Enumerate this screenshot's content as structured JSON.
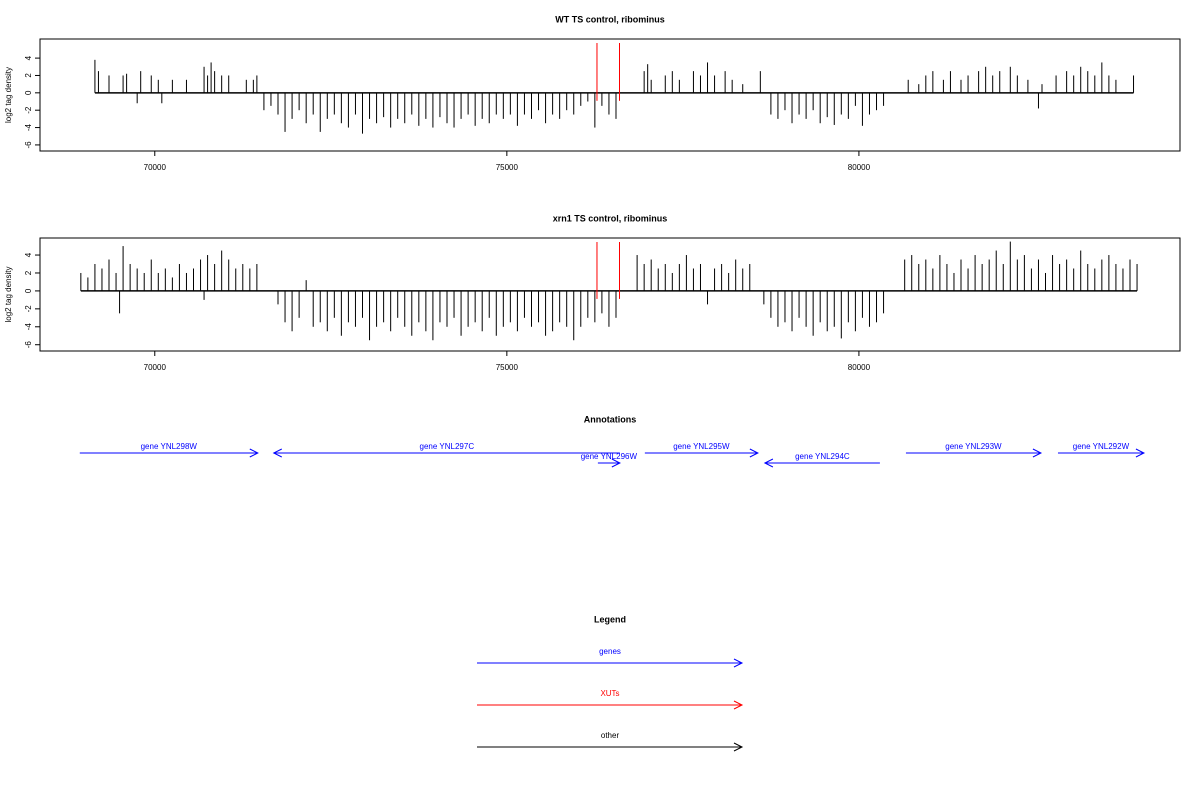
{
  "chart_data": [
    {
      "type": "bar",
      "title": "WT TS control, ribominus",
      "ylabel": "log2 tag density",
      "color": "#000000",
      "x": [
        69150,
        69200,
        69350,
        69550,
        69600,
        69750,
        69800,
        69950,
        70050,
        70100,
        70250,
        70450,
        70700,
        70750,
        70800,
        70850,
        70950,
        71050,
        71300,
        71400,
        71450,
        71550,
        71650,
        71750,
        71850,
        71950,
        72050,
        72150,
        72250,
        72350,
        72450,
        72550,
        72650,
        72750,
        72850,
        72950,
        73050,
        73150,
        73250,
        73350,
        73450,
        73550,
        73650,
        73750,
        73850,
        73950,
        74050,
        74150,
        74250,
        74350,
        74450,
        74550,
        74650,
        74750,
        74850,
        74950,
        75050,
        75150,
        75250,
        75350,
        75450,
        75550,
        75650,
        75750,
        75850,
        75950,
        76050,
        76150,
        76250,
        76350,
        76450,
        76550,
        76950,
        77000,
        77050,
        77250,
        77350,
        77450,
        77650,
        77750,
        77850,
        77950,
        78100,
        78200,
        78350,
        78600,
        78750,
        78850,
        78950,
        79050,
        79150,
        79250,
        79350,
        79450,
        79550,
        79650,
        79750,
        79850,
        79950,
        80050,
        80150,
        80250,
        80350,
        80700,
        80850,
        80950,
        81050,
        81200,
        81300,
        81450,
        81550,
        81700,
        81800,
        81900,
        82000,
        82150,
        82250,
        82400,
        82550,
        82600,
        82800,
        82950,
        83050,
        83150,
        83250,
        83350,
        83450,
        83550,
        83650,
        83900
      ],
      "values": [
        3.8,
        2.5,
        2,
        2,
        2.2,
        -1.2,
        2.5,
        2,
        1.5,
        -1.2,
        1.5,
        1.5,
        3,
        2,
        3.5,
        2.5,
        2,
        2,
        1.5,
        1.5,
        2,
        -2,
        -1.5,
        -2.5,
        -4.5,
        -3,
        -2,
        -3.5,
        -2.5,
        -4.5,
        -3,
        -2.5,
        -3.5,
        -4,
        -2.5,
        -4.7,
        -3,
        -3.5,
        -2.8,
        -4,
        -3,
        -3.5,
        -2.5,
        -3.8,
        -3,
        -4,
        -2.8,
        -3.5,
        -4,
        -3,
        -2.5,
        -3.8,
        -3,
        -3.5,
        -2.5,
        -3,
        -2.5,
        -3.8,
        -2.5,
        -3,
        -2,
        -3.5,
        -2.5,
        -3,
        -2,
        -2.5,
        -1.5,
        -1,
        -4,
        -1.5,
        -2.5,
        -3,
        2.5,
        3.3,
        1.5,
        2,
        2.5,
        1.5,
        2.5,
        2,
        3.5,
        2,
        2.5,
        1.5,
        1,
        2.5,
        -2.5,
        -3,
        -2,
        -3.5,
        -2.5,
        -3,
        -2,
        -3.5,
        -2.8,
        -3.7,
        -2.5,
        -3,
        -1.5,
        -3.8,
        -2.5,
        -2,
        -1.5,
        1.5,
        1,
        2,
        2.5,
        1.5,
        2.5,
        1.5,
        2,
        2.5,
        3,
        2,
        2.5,
        3,
        2,
        1.5,
        -1.8,
        1,
        2,
        2.5,
        2,
        3,
        2.5,
        2,
        3.5,
        2,
        1.5,
        2
      ],
      "xlim": [
        68370,
        84560
      ],
      "ylim": [
        -6.7,
        6.2
      ],
      "xticks": [
        70000,
        75000,
        80000
      ],
      "yticks": [
        -6,
        -4,
        -2,
        0,
        2,
        4
      ],
      "markers": {
        "x": [
          76280,
          76600
        ],
        "color": "#ff0000"
      }
    },
    {
      "type": "bar",
      "title": "xrn1 TS control, ribominus",
      "ylabel": "log2 tag density",
      "color": "#000000",
      "x": [
        68950,
        69050,
        69150,
        69250,
        69350,
        69450,
        69500,
        69550,
        69650,
        69750,
        69850,
        69950,
        70050,
        70150,
        70250,
        70350,
        70450,
        70550,
        70650,
        70700,
        70750,
        70850,
        70950,
        71050,
        71150,
        71250,
        71350,
        71450,
        71750,
        71850,
        71950,
        72050,
        72150,
        72250,
        72350,
        72450,
        72550,
        72650,
        72750,
        72850,
        72950,
        73050,
        73150,
        73250,
        73350,
        73450,
        73550,
        73650,
        73750,
        73850,
        73950,
        74050,
        74150,
        74250,
        74350,
        74450,
        74550,
        74650,
        74750,
        74850,
        74950,
        75050,
        75150,
        75250,
        75350,
        75450,
        75550,
        75650,
        75750,
        75850,
        75950,
        76050,
        76150,
        76250,
        76350,
        76450,
        76550,
        76850,
        76950,
        77050,
        77150,
        77250,
        77350,
        77450,
        77550,
        77650,
        77750,
        77850,
        77950,
        78050,
        78150,
        78250,
        78350,
        78450,
        78650,
        78750,
        78850,
        78950,
        79050,
        79150,
        79250,
        79350,
        79450,
        79550,
        79650,
        79750,
        79850,
        79950,
        80050,
        80150,
        80250,
        80350,
        80650,
        80750,
        80850,
        80950,
        81050,
        81150,
        81250,
        81350,
        81450,
        81550,
        81650,
        81750,
        81850,
        81950,
        82050,
        82150,
        82250,
        82350,
        82450,
        82550,
        82650,
        82750,
        82850,
        82950,
        83050,
        83150,
        83250,
        83350,
        83450,
        83550,
        83650,
        83750,
        83850,
        83950
      ],
      "values": [
        2,
        1.5,
        3,
        2.5,
        3.5,
        2,
        -2.5,
        5,
        3,
        2.5,
        2,
        3.5,
        2,
        2.5,
        1.5,
        3,
        2,
        2.5,
        3.5,
        -1,
        4,
        3,
        4.5,
        3.5,
        2.5,
        3,
        2.5,
        3,
        -1.5,
        -3.5,
        -4.5,
        -3,
        1.2,
        -4,
        -3.5,
        -4.5,
        -3,
        -5,
        -3.5,
        -4,
        -3,
        -5.5,
        -4,
        -3.5,
        -4.5,
        -3,
        -4,
        -5,
        -3.5,
        -4.5,
        -5.5,
        -3.5,
        -4,
        -3,
        -5,
        -4,
        -3.5,
        -4.5,
        -3,
        -5,
        -4,
        -3.5,
        -4.5,
        -3,
        -4,
        -3.5,
        -5,
        -4.5,
        -3.5,
        -4,
        -5.5,
        -4,
        -3,
        -3.5,
        -2.5,
        -4,
        -3,
        4,
        3,
        3.5,
        2.5,
        3,
        2,
        3,
        4,
        2.5,
        3,
        -1.5,
        2.5,
        3,
        2,
        3.5,
        2.5,
        3,
        -1.5,
        -3,
        -4,
        -3.5,
        -4.5,
        -3,
        -4,
        -5,
        -3.5,
        -4.5,
        -4,
        -5.3,
        -3.5,
        -4.5,
        -3,
        -4,
        -3.5,
        -2.5,
        3.5,
        4,
        3,
        3.5,
        2.5,
        4,
        3,
        2,
        3.5,
        2.5,
        4,
        3,
        3.5,
        4.5,
        3,
        5.5,
        3.5,
        4,
        2.5,
        3.5,
        2,
        4,
        3,
        3.5,
        2.5,
        4.5,
        3,
        2.5,
        3.5,
        4,
        3,
        2.5,
        3.5,
        3
      ],
      "xlim": [
        68370,
        84560
      ],
      "ylim": [
        -6.7,
        5.9
      ],
      "xticks": [
        70000,
        75000,
        80000
      ],
      "yticks": [
        -6,
        -4,
        -2,
        0,
        2,
        4
      ],
      "markers": {
        "x": [
          76280,
          76600
        ],
        "color": "#ff0000"
      }
    }
  ],
  "annotations": {
    "title": "Annotations",
    "color": "#0000ff",
    "items": [
      {
        "label": "gene YNL298W",
        "from": 68935,
        "to": 71463
      },
      {
        "label": "gene YNL297C",
        "from": 76605,
        "to": 71690
      },
      {
        "label": "gene YNL296W",
        "from": 76293,
        "to": 76605
      },
      {
        "label": "gene YNL295W",
        "from": 76960,
        "to": 78565
      },
      {
        "label": "gene YNL294C",
        "from": 80298,
        "to": 78665
      },
      {
        "label": "gene YNL293W",
        "from": 80668,
        "to": 82585
      },
      {
        "label": "gene YNL292W",
        "from": 82827,
        "to": 84048
      }
    ]
  },
  "legend": {
    "title": "Legend",
    "items": [
      {
        "label": "genes",
        "color": "#0000ff"
      },
      {
        "label": "XUTs",
        "color": "#ff0000"
      },
      {
        "label": "other",
        "color": "#000000"
      }
    ]
  }
}
